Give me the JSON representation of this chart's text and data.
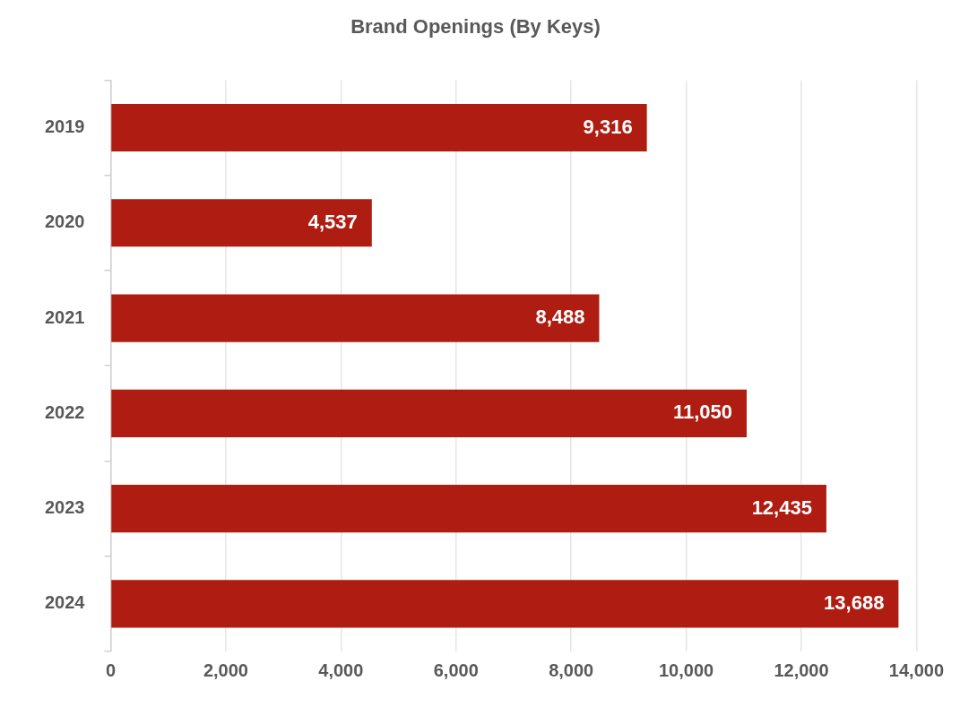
{
  "chart_data": {
    "type": "bar",
    "orientation": "horizontal",
    "title": "Brand Openings (By Keys)",
    "categories": [
      "2019",
      "2020",
      "2021",
      "2022",
      "2023",
      "2024"
    ],
    "values": [
      9316,
      4537,
      8488,
      11050,
      12435,
      13688
    ],
    "color": "#ae1c12",
    "value_labels": [
      "9,316",
      "4,537",
      "8,488",
      "11,050",
      "12,435",
      "13,688"
    ],
    "xlim": [
      0,
      14000
    ],
    "xticks": [
      {
        "value": 0,
        "label": "0"
      },
      {
        "value": 2000,
        "label": "2,000"
      },
      {
        "value": 4000,
        "label": "4,000"
      },
      {
        "value": 6000,
        "label": "6,000"
      },
      {
        "value": 8000,
        "label": "8,000"
      },
      {
        "value": 10000,
        "label": "10,000"
      },
      {
        "value": 12000,
        "label": "12,000"
      },
      {
        "value": 14000,
        "label": "14,000"
      }
    ],
    "grid": "x",
    "legend": false
  }
}
